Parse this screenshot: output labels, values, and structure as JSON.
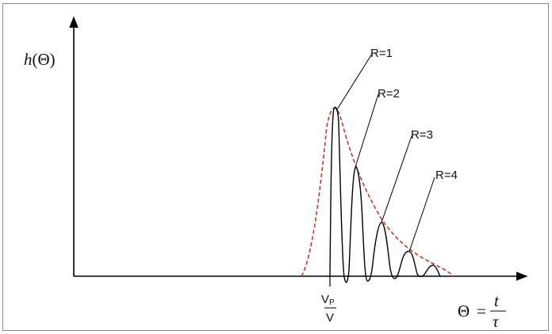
{
  "y_axis_label": {
    "func": "h",
    "arg": "(Θ)"
  },
  "x_axis_label": {
    "symbol": "Θ",
    "equals": "=",
    "numerator": "t",
    "denominator": "τ"
  },
  "tick_label": {
    "numerator_main": "V",
    "numerator_sub": "P",
    "denominator": "V"
  },
  "curves": [
    {
      "label": "R=1"
    },
    {
      "label": "R=2"
    },
    {
      "label": "R=3"
    },
    {
      "label": "R=4"
    }
  ],
  "colors": {
    "axis": "#000000",
    "curve": "#000000",
    "envelope": "#c0392b"
  }
}
